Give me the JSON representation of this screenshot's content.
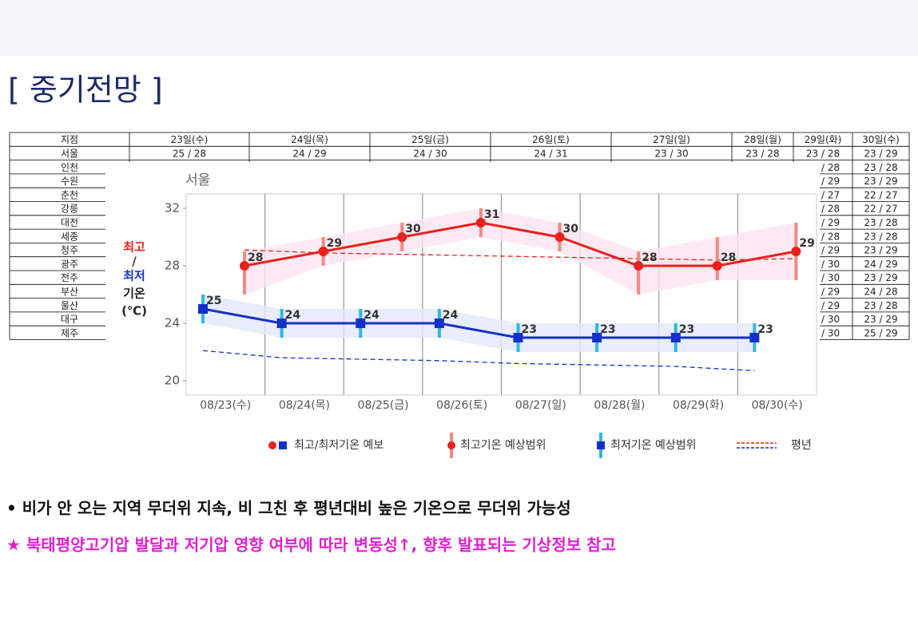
{
  "title": "[ 중기전망 ]",
  "table": {
    "header": [
      "지점",
      "23일(수)",
      "24일(목)",
      "25일(금)",
      "26일(토)",
      "27일(일)",
      "28일(월)",
      "29일(화)",
      "30일(수)"
    ],
    "rows": [
      [
        "서울",
        "25 / 28",
        "24 / 29",
        "24 / 30",
        "24 / 31",
        "23 / 30",
        "23 / 28",
        "23 / 28",
        "23 / 29"
      ],
      [
        "인천",
        null,
        null,
        null,
        null,
        null,
        null,
        "/ 28",
        "23 / 28"
      ],
      [
        "수원",
        null,
        null,
        null,
        null,
        null,
        null,
        "/ 29",
        "23 / 29"
      ],
      [
        "춘천",
        null,
        null,
        null,
        null,
        null,
        null,
        "/ 27",
        "22 / 27"
      ],
      [
        "강릉",
        null,
        null,
        null,
        null,
        null,
        null,
        "/ 28",
        "22 / 27"
      ],
      [
        "대전",
        null,
        null,
        null,
        null,
        null,
        null,
        "/ 29",
        "23 / 28"
      ],
      [
        "세종",
        null,
        null,
        null,
        null,
        null,
        null,
        "/ 28",
        "23 / 28"
      ],
      [
        "청주",
        null,
        null,
        null,
        null,
        null,
        null,
        "/ 29",
        "23 / 29"
      ],
      [
        "광주",
        null,
        null,
        null,
        null,
        null,
        null,
        "/ 30",
        "24 / 29"
      ],
      [
        "전주",
        null,
        null,
        null,
        null,
        null,
        null,
        "/ 30",
        "23 / 29"
      ],
      [
        "부산",
        null,
        null,
        null,
        null,
        null,
        null,
        "/ 29",
        "24 / 28"
      ],
      [
        "울산",
        null,
        null,
        null,
        null,
        null,
        null,
        "/ 29",
        "23 / 28"
      ],
      [
        "대구",
        null,
        null,
        null,
        null,
        null,
        null,
        "/ 30",
        "23 / 29"
      ],
      [
        "제주",
        null,
        null,
        null,
        null,
        null,
        null,
        "/ 30",
        "25 / 29"
      ]
    ]
  },
  "chart_data": {
    "type": "line",
    "title": "서울",
    "axis_label": {
      "high": "최고",
      "slash": "/",
      "low": "최저",
      "temp": "기온",
      "unit": "(℃)"
    },
    "categories": [
      "08/23(수)",
      "08/24(목)",
      "08/25(금)",
      "08/26(토)",
      "08/27(일)",
      "08/28(월)",
      "08/29(화)",
      "08/30(수)"
    ],
    "ylim": [
      19,
      33
    ],
    "yticks": [
      20,
      24,
      28,
      32
    ],
    "series": [
      {
        "color": "#e8211b",
        "values": [
          28,
          29,
          30,
          31,
          30,
          28,
          28,
          29
        ],
        "range_low": [
          26,
          28,
          29,
          30,
          29,
          26,
          27,
          27
        ],
        "range_high": [
          29,
          30,
          31,
          32,
          31,
          29,
          30,
          31
        ],
        "normal": [
          29.1,
          28.9,
          28.8,
          28.7,
          28.6,
          28.5,
          28.4,
          28.5
        ]
      },
      {
        "color": "#1530c8",
        "values": [
          25,
          24,
          24,
          24,
          23,
          23,
          23,
          23
        ],
        "range_low": [
          24,
          23,
          23,
          23,
          22,
          22,
          22,
          22
        ],
        "range_high": [
          26,
          25,
          25,
          25,
          24,
          24,
          24,
          24
        ],
        "normal": [
          22.1,
          21.6,
          21.5,
          21.4,
          21.2,
          21.1,
          21.0,
          20.7
        ]
      }
    ],
    "legend": [
      "최고/최저기온 예보",
      "최고기온 예상범위",
      "최저기온 예상범위",
      "평년"
    ]
  },
  "notes": [
    "• 비가 안 오는 지역 무더위 지속, 비 그친 후 평년대비 높은 기온으로 무더위 가능성",
    "★ 북태평양고기압 발달과 저기압 영향 여부에 따라 변동성↑, 향후 발표되는 기상정보 참고"
  ]
}
